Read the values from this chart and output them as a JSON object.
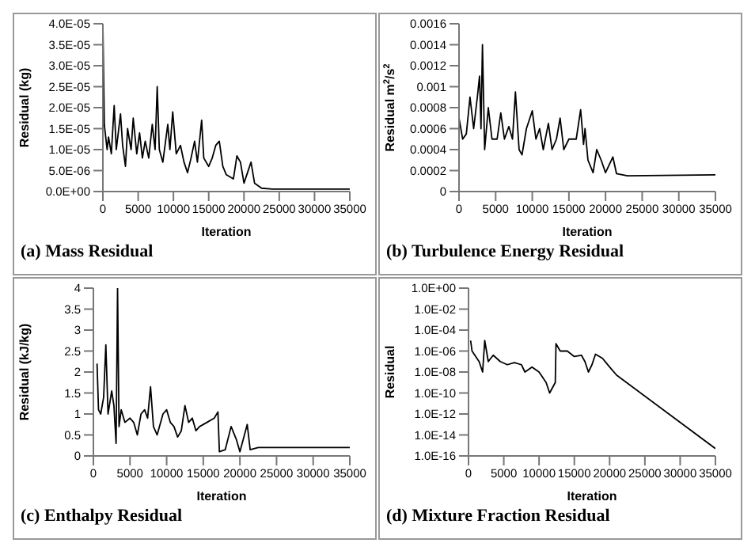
{
  "chart_data": [
    {
      "type": "line",
      "title": "(a) Mass Residual",
      "xlabel": "Iteration",
      "ylabel": "Residual (kg)",
      "marker": "none",
      "x": [
        0,
        200,
        600,
        800,
        1200,
        1600,
        1900,
        2500,
        2800,
        3200,
        3500,
        4000,
        4300,
        4800,
        5200,
        5600,
        6000,
        6500,
        7000,
        7400,
        7700,
        8000,
        8500,
        9200,
        9500,
        9900,
        10400,
        11000,
        11500,
        12000,
        12500,
        13000,
        13400,
        14000,
        14300,
        15000,
        15500,
        16000,
        16500,
        17000,
        17500,
        18500,
        19000,
        19500,
        20000,
        21000,
        21500,
        22500,
        24000,
        35000
      ],
      "series": [
        {
          "color": "#000000",
          "values": [
            4e-05,
            1.6e-05,
            1e-05,
            1.3e-05,
            9e-06,
            2.05e-05,
            1e-05,
            1.85e-05,
            1.1e-05,
            6e-06,
            1.5e-05,
            1e-05,
            1.75e-05,
            9e-06,
            1.4e-05,
            8e-06,
            1.2e-05,
            8e-06,
            1.6e-05,
            1e-05,
            2.5e-05,
            1e-05,
            7e-06,
            1.6e-05,
            1e-05,
            1.9e-05,
            9e-06,
            1.1e-05,
            7e-06,
            4.5e-06,
            8e-06,
            1.2e-05,
            7e-06,
            1.7e-05,
            8e-06,
            6e-06,
            8e-06,
            1.1e-05,
            1.2e-05,
            6e-06,
            4e-06,
            3e-06,
            8.5e-06,
            7e-06,
            2e-06,
            7e-06,
            2e-06,
            8e-07,
            6e-07,
            6e-07
          ]
        }
      ],
      "xlim": [
        0,
        35000
      ],
      "xticks": [
        0,
        5000,
        10000,
        15000,
        20000,
        25000,
        30000,
        35000
      ],
      "ylim": [
        0,
        4e-05
      ],
      "yticks": [
        {
          "value": 0,
          "label": "0.0E+00"
        },
        {
          "value": 5e-06,
          "label": "5.0E-06"
        },
        {
          "value": 1e-05,
          "label": "1.0E-05"
        },
        {
          "value": 1.5e-05,
          "label": "1.5E-05"
        },
        {
          "value": 2e-05,
          "label": "2.0E-05"
        },
        {
          "value": 2.5e-05,
          "label": "2.5E-05"
        },
        {
          "value": 3e-05,
          "label": "3.0E-05"
        },
        {
          "value": 3.5e-05,
          "label": "3.5E-05"
        },
        {
          "value": 4e-05,
          "label": "4.0E-05"
        }
      ]
    },
    {
      "type": "line",
      "title": "(b) Turbulence Energy Residual",
      "xlabel": "Iteration",
      "ylabel": "Residual m$^{2}$/s$^{2}$",
      "marker": "none",
      "x": [
        0,
        500,
        1000,
        1500,
        2000,
        2500,
        2800,
        3000,
        3200,
        3500,
        4000,
        4500,
        5200,
        5700,
        6200,
        6800,
        7300,
        7700,
        8200,
        8600,
        9200,
        10000,
        10500,
        11000,
        11500,
        12200,
        12700,
        13300,
        13800,
        14300,
        15000,
        16000,
        16600,
        17000,
        17200,
        17600,
        18300,
        18800,
        19400,
        20000,
        21000,
        21500,
        23000,
        35000
      ],
      "series": [
        {
          "color": "#000000",
          "values": [
            0.0007,
            0.0005,
            0.00055,
            0.0009,
            0.0006,
            0.0009,
            0.0011,
            0.0006,
            0.0014,
            0.0004,
            0.0008,
            0.0005,
            0.0005,
            0.00075,
            0.0005,
            0.00062,
            0.0005,
            0.00095,
            0.0004,
            0.00035,
            0.0006,
            0.00077,
            0.0005,
            0.0006,
            0.0004,
            0.00065,
            0.0004,
            0.0005,
            0.0007,
            0.0004,
            0.0005,
            0.0005,
            0.00078,
            0.00045,
            0.0006,
            0.0003,
            0.00018,
            0.0004,
            0.0003,
            0.00018,
            0.00033,
            0.00017,
            0.00015,
            0.00016
          ]
        }
      ],
      "xlim": [
        0,
        35000
      ],
      "xticks": [
        0,
        5000,
        10000,
        15000,
        20000,
        25000,
        30000,
        35000
      ],
      "ylim": [
        0,
        0.0016
      ],
      "yticks": [
        0,
        0.0002,
        0.0004,
        0.0006,
        0.0008,
        0.001,
        0.0012,
        0.0014,
        0.0016
      ]
    },
    {
      "type": "line",
      "title": "(c) Enthalpy Residual",
      "xlabel": "Iteration",
      "ylabel": "Residual (kJ/kg)",
      "marker": "none",
      "x": [
        500,
        700,
        1000,
        1400,
        1700,
        2000,
        2500,
        2800,
        3100,
        3300,
        3500,
        3800,
        4300,
        5000,
        5500,
        6000,
        6500,
        7000,
        7400,
        7800,
        8200,
        8700,
        9500,
        10000,
        10500,
        11000,
        11500,
        12000,
        12500,
        13000,
        13500,
        14000,
        14500,
        15500,
        16500,
        17000,
        17200,
        18000,
        18800,
        19500,
        20000,
        21000,
        21400,
        22500,
        35000
      ],
      "series": [
        {
          "color": "#000000",
          "values": [
            2.2,
            1.1,
            1.0,
            1.4,
            2.65,
            1.0,
            1.55,
            1.2,
            0.3,
            4.0,
            0.7,
            1.1,
            0.8,
            0.9,
            0.8,
            0.5,
            1.0,
            1.1,
            0.9,
            1.65,
            0.7,
            0.5,
            1.0,
            1.1,
            0.8,
            0.7,
            0.45,
            0.6,
            1.2,
            0.8,
            0.9,
            0.6,
            0.7,
            0.8,
            0.9,
            1.05,
            0.1,
            0.15,
            0.7,
            0.4,
            0.1,
            0.75,
            0.15,
            0.2,
            0.2
          ]
        }
      ],
      "xlim": [
        0,
        35000
      ],
      "xticks": [
        0,
        5000,
        10000,
        15000,
        20000,
        25000,
        30000,
        35000
      ],
      "ylim": [
        0,
        4
      ],
      "yticks": [
        0,
        0.5,
        1,
        1.5,
        2,
        2.5,
        3,
        3.5,
        4
      ]
    },
    {
      "type": "line",
      "title": "(d) Mixture Fraction Residual",
      "xlabel": "Iteration",
      "ylabel": "Residual",
      "marker": "none",
      "log": "y",
      "x": [
        300,
        500,
        1500,
        2000,
        2300,
        2800,
        3500,
        4500,
        5500,
        6500,
        7500,
        8000,
        9000,
        10000,
        11000,
        11500,
        12300,
        12400,
        13000,
        14000,
        15000,
        16000,
        16500,
        17000,
        17500,
        18000,
        19000,
        20000,
        21000,
        35000
      ],
      "series": [
        {
          "color": "#000000",
          "values": [
            1e-05,
            1e-06,
            1e-07,
            1e-08,
            1e-05,
            1e-07,
            4e-07,
            1e-07,
            5e-08,
            8e-08,
            5e-08,
            1e-08,
            3e-08,
            1e-08,
            1e-09,
            1e-10,
            1e-09,
            5e-06,
            1e-06,
            1e-06,
            3e-07,
            4e-07,
            1e-07,
            1e-08,
            5e-08,
            5e-07,
            2e-07,
            3e-08,
            5e-09,
            5e-16
          ]
        }
      ],
      "xlim": [
        0,
        35000
      ],
      "xticks": [
        0,
        5000,
        10000,
        15000,
        20000,
        25000,
        30000,
        35000
      ],
      "ylim": [
        1e-16,
        1
      ],
      "yticks": [
        {
          "value": 1e-16,
          "label": "1.0E-16"
        },
        {
          "value": 1e-14,
          "label": "1.0E-14"
        },
        {
          "value": 1e-12,
          "label": "1.0E-12"
        },
        {
          "value": 1e-10,
          "label": "1.0E-10"
        },
        {
          "value": 1e-08,
          "label": "1.0E-08"
        },
        {
          "value": 1e-06,
          "label": "1.0E-06"
        },
        {
          "value": 0.0001,
          "label": "1.0E-04"
        },
        {
          "value": 0.01,
          "label": "1.0E-02"
        },
        {
          "value": 1,
          "label": "1.0E+00"
        }
      ]
    }
  ]
}
